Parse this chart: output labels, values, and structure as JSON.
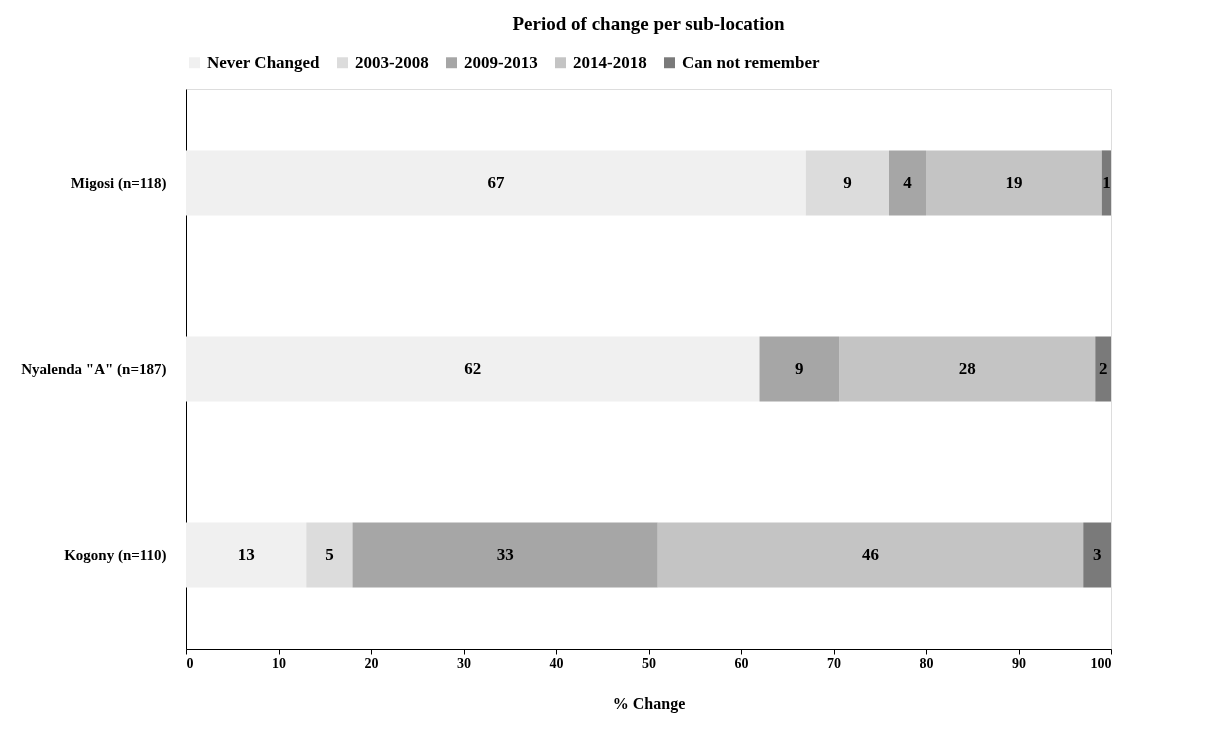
{
  "chart_data": {
    "type": "bar",
    "orientation": "horizontal",
    "stacked": true,
    "title": "Period of  change per sub-location",
    "xlabel": "% Change",
    "categories": [
      "Migosi (n=118)",
      "Nyalenda \"A\" (n=187)",
      "Kogony (n=110)"
    ],
    "series": [
      {
        "name": "Never Changed",
        "color": "#f0f0f0",
        "values": [
          67,
          62,
          13
        ],
        "value_labels": [
          "67",
          "62",
          "13"
        ]
      },
      {
        "name": "2003-2008",
        "color": "#dcdcdc",
        "values": [
          9,
          null,
          5
        ],
        "value_labels": [
          "9",
          null,
          "5"
        ]
      },
      {
        "name": "2009-2013",
        "color": "#a6a6a6",
        "values": [
          4,
          8.6,
          33
        ],
        "value_labels": [
          "4",
          "9",
          "33"
        ]
      },
      {
        "name": "2014-2018",
        "color": "#c4c4c4",
        "values": [
          19,
          27.7,
          46
        ],
        "value_labels": [
          "19",
          "28",
          "46"
        ]
      },
      {
        "name": "Can not remember",
        "color": "#7a7a7a",
        "values": [
          1,
          1.7,
          3
        ],
        "value_labels": [
          "1",
          "2",
          "3"
        ]
      }
    ],
    "xlim": [
      0,
      100
    ],
    "xticks": [
      0,
      10,
      20,
      30,
      40,
      50,
      60,
      70,
      80,
      90,
      100
    ],
    "grid": false,
    "legend": "top"
  }
}
